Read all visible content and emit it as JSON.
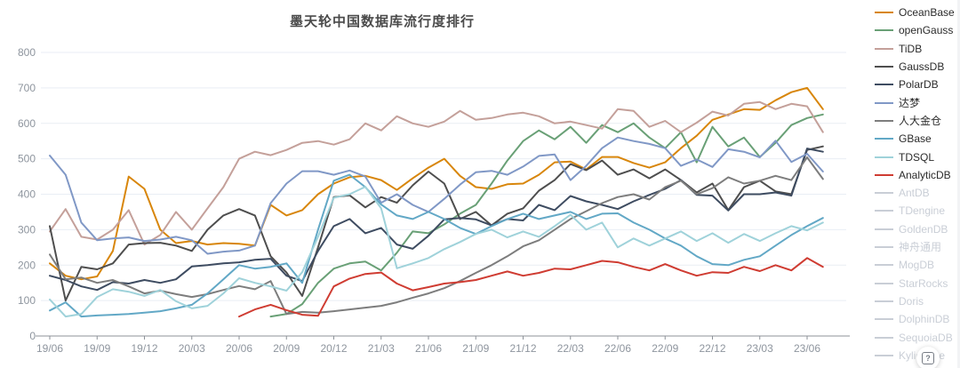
{
  "page": {
    "background": "#ffffff"
  },
  "header": {
    "title": "墨天轮中国数据库流行度排行"
  },
  "help_button": {
    "label": "?"
  },
  "legend": {
    "position": "right",
    "disabled_color": "#c9ced6",
    "items": [
      {
        "label": "OceanBase",
        "color": "#d8860b",
        "active": true
      },
      {
        "label": "openGauss",
        "color": "#69a076",
        "active": true
      },
      {
        "label": "TiDB",
        "color": "#c4a09a",
        "active": true
      },
      {
        "label": "GaussDB",
        "color": "#4e4e4e",
        "active": true
      },
      {
        "label": "PolarDB",
        "color": "#3e4c61",
        "active": true
      },
      {
        "label": "达梦",
        "color": "#8098c6",
        "active": true
      },
      {
        "label": "人大金仓",
        "color": "#7d7d7d",
        "active": true
      },
      {
        "label": "GBase",
        "color": "#62a8c6",
        "active": true
      },
      {
        "label": "TDSQL",
        "color": "#9fd2da",
        "active": true
      },
      {
        "label": "AnalyticDB",
        "color": "#cf3c32",
        "active": true
      },
      {
        "label": "AntDB",
        "color": "#c9ced6",
        "active": false
      },
      {
        "label": "TDengine",
        "color": "#c9ced6",
        "active": false
      },
      {
        "label": "GoldenDB",
        "color": "#c9ced6",
        "active": false
      },
      {
        "label": "神舟通用",
        "color": "#c9ced6",
        "active": false
      },
      {
        "label": "MogDB",
        "color": "#c9ced6",
        "active": false
      },
      {
        "label": "StarRocks",
        "color": "#c9ced6",
        "active": false
      },
      {
        "label": "Doris",
        "color": "#c9ced6",
        "active": false
      },
      {
        "label": "DolphinDB",
        "color": "#c9ced6",
        "active": false
      },
      {
        "label": "SequoiaDB",
        "color": "#c9ced6",
        "active": false
      },
      {
        "label": "Kyligence",
        "color": "#c9ced6",
        "active": false
      }
    ]
  },
  "chart_data": {
    "type": "line",
    "title": "墨天轮中国数据库流行度排行",
    "xlabel": "",
    "ylabel": "",
    "ylim": [
      0,
      800
    ],
    "y_ticks": [
      0,
      100,
      200,
      300,
      400,
      500,
      600,
      700,
      800
    ],
    "grid": "horizontal",
    "legend_position": "right",
    "x_tick_every": 3,
    "x_tick_labels": [
      "19/06",
      "19/09",
      "19/12",
      "20/03",
      "20/06",
      "20/09",
      "20/12",
      "21/03",
      "21/06",
      "21/09",
      "21/12",
      "22/03",
      "22/06",
      "22/09",
      "22/12",
      "23/03",
      "23/06"
    ],
    "months": [
      "19/06",
      "19/07",
      "19/08",
      "19/09",
      "19/10",
      "19/11",
      "19/12",
      "20/01",
      "20/02",
      "20/03",
      "20/04",
      "20/05",
      "20/06",
      "20/07",
      "20/08",
      "20/09",
      "20/10",
      "20/11",
      "20/12",
      "21/01",
      "21/02",
      "21/03",
      "21/04",
      "21/05",
      "21/06",
      "21/07",
      "21/08",
      "21/09",
      "21/10",
      "21/11",
      "21/12",
      "22/01",
      "22/02",
      "22/03",
      "22/04",
      "22/05",
      "22/06",
      "22/07",
      "22/08",
      "22/09",
      "22/10",
      "22/11",
      "22/12",
      "23/01",
      "23/02",
      "23/03",
      "23/04",
      "23/05",
      "23/06",
      "23/07"
    ],
    "series": [
      {
        "name": "OceanBase",
        "color": "#d8860b",
        "values": [
          205,
          170,
          160,
          168,
          240,
          450,
          415,
          300,
          262,
          268,
          258,
          262,
          260,
          255,
          370,
          340,
          355,
          400,
          430,
          448,
          452,
          440,
          412,
          445,
          475,
          500,
          452,
          420,
          415,
          428,
          430,
          455,
          490,
          492,
          470,
          505,
          505,
          488,
          475,
          490,
          530,
          565,
          610,
          625,
          640,
          638,
          665,
          688,
          700,
          640
        ]
      },
      {
        "name": "openGauss",
        "color": "#69a076",
        "values": [
          null,
          null,
          null,
          null,
          null,
          null,
          null,
          null,
          null,
          null,
          null,
          null,
          null,
          null,
          55,
          62,
          90,
          150,
          190,
          205,
          210,
          185,
          235,
          295,
          290,
          315,
          345,
          370,
          430,
          495,
          550,
          580,
          555,
          590,
          545,
          595,
          575,
          600,
          560,
          530,
          575,
          490,
          590,
          535,
          560,
          505,
          545,
          595,
          615,
          625
        ]
      },
      {
        "name": "TiDB",
        "color": "#c4a09a",
        "values": [
          295,
          358,
          280,
          272,
          300,
          355,
          258,
          285,
          350,
          300,
          360,
          420,
          500,
          520,
          510,
          525,
          545,
          550,
          540,
          555,
          600,
          580,
          620,
          600,
          590,
          605,
          635,
          610,
          615,
          625,
          630,
          620,
          600,
          605,
          595,
          585,
          640,
          635,
          590,
          607,
          575,
          602,
          633,
          622,
          655,
          660,
          640,
          655,
          648,
          575
        ]
      },
      {
        "name": "GaussDB",
        "color": "#4e4e4e",
        "values": [
          310,
          100,
          195,
          188,
          205,
          258,
          262,
          263,
          255,
          240,
          300,
          340,
          358,
          340,
          225,
          179,
          113,
          250,
          392,
          397,
          363,
          392,
          376,
          425,
          464,
          430,
          330,
          350,
          312,
          345,
          360,
          410,
          440,
          485,
          468,
          495,
          455,
          470,
          445,
          470,
          440,
          405,
          430,
          355,
          420,
          438,
          408,
          400,
          525,
          535
        ]
      },
      {
        "name": "PolarDB",
        "color": "#3e4c61",
        "values": [
          170,
          158,
          140,
          130,
          152,
          148,
          158,
          150,
          160,
          196,
          200,
          205,
          208,
          215,
          218,
          170,
          155,
          240,
          310,
          330,
          290,
          305,
          258,
          246,
          283,
          329,
          333,
          329,
          312,
          330,
          326,
          370,
          355,
          395,
          380,
          370,
          358,
          380,
          398,
          415,
          440,
          398,
          396,
          354,
          400,
          400,
          405,
          396,
          529,
          520
        ]
      },
      {
        "name": "达梦",
        "color": "#8098c6",
        "values": [
          509,
          455,
          320,
          270,
          275,
          278,
          268,
          272,
          280,
          270,
          232,
          238,
          241,
          255,
          375,
          430,
          465,
          465,
          455,
          467,
          450,
          376,
          400,
          370,
          350,
          387,
          427,
          462,
          466,
          455,
          478,
          508,
          512,
          440,
          480,
          530,
          560,
          550,
          542,
          530,
          480,
          498,
          477,
          527,
          520,
          504,
          551,
          491,
          514,
          464
        ]
      },
      {
        "name": "人大金仓",
        "color": "#7d7d7d",
        "values": [
          230,
          160,
          165,
          150,
          158,
          140,
          120,
          128,
          118,
          110,
          118,
          130,
          141,
          132,
          155,
          62,
          68,
          66,
          70,
          75,
          80,
          85,
          95,
          108,
          120,
          135,
          155,
          178,
          200,
          225,
          253,
          270,
          300,
          330,
          352,
          375,
          392,
          400,
          385,
          420,
          438,
          400,
          417,
          448,
          430,
          438,
          452,
          440,
          504,
          443
        ]
      },
      {
        "name": "GBase",
        "color": "#62a8c6",
        "values": [
          72,
          95,
          55,
          58,
          60,
          62,
          66,
          70,
          78,
          88,
          120,
          160,
          200,
          190,
          195,
          205,
          150,
          300,
          438,
          455,
          420,
          371,
          340,
          330,
          350,
          330,
          305,
          288,
          310,
          330,
          345,
          330,
          340,
          350,
          330,
          345,
          346,
          320,
          300,
          275,
          255,
          225,
          203,
          200,
          215,
          225,
          255,
          285,
          310,
          333
        ]
      },
      {
        "name": "TDSQL",
        "color": "#9fd2da",
        "values": [
          103,
          55,
          62,
          110,
          132,
          125,
          113,
          130,
          98,
          78,
          85,
          120,
          163,
          150,
          140,
          128,
          180,
          280,
          390,
          400,
          421,
          360,
          191,
          205,
          220,
          245,
          265,
          288,
          300,
          278,
          295,
          280,
          310,
          342,
          300,
          320,
          250,
          275,
          255,
          275,
          295,
          268,
          290,
          263,
          288,
          268,
          290,
          310,
          298,
          320
        ]
      },
      {
        "name": "AnalyticDB",
        "color": "#cf3c32",
        "values": [
          null,
          null,
          null,
          null,
          null,
          null,
          null,
          null,
          null,
          null,
          null,
          null,
          55,
          75,
          88,
          73,
          60,
          57,
          140,
          162,
          175,
          179,
          148,
          129,
          138,
          148,
          152,
          158,
          170,
          182,
          170,
          178,
          190,
          188,
          200,
          212,
          208,
          195,
          185,
          203,
          185,
          170,
          180,
          178,
          195,
          183,
          200,
          185,
          220,
          195
        ]
      }
    ]
  }
}
